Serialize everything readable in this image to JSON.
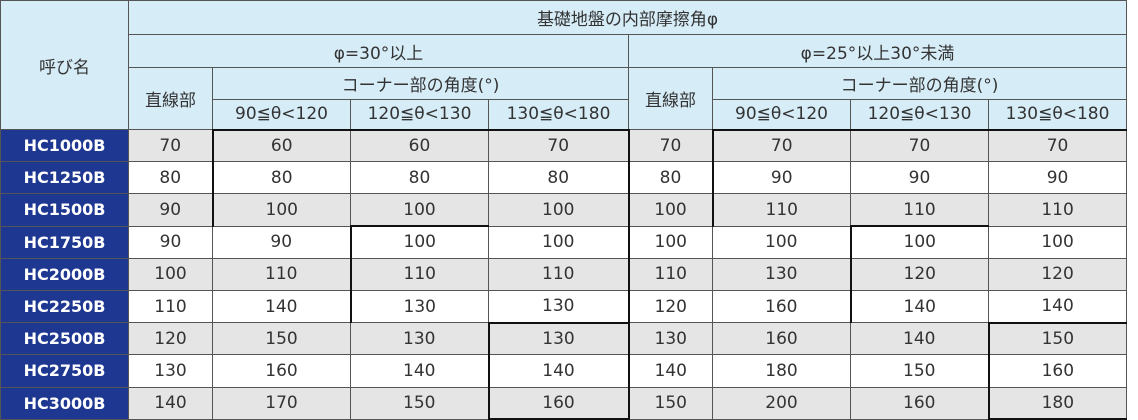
{
  "table": {
    "corner": "呼び名",
    "title": "基礎地盤の内部摩擦角φ",
    "groups": [
      {
        "label": "φ=30°以上",
        "straight": "直線部",
        "corner_angle": "コーナー部の角度(°)",
        "ranges": [
          "90≦θ<120",
          "120≦θ<130",
          "130≦θ<180"
        ]
      },
      {
        "label": "φ=25°以上30°未満",
        "straight": "直線部",
        "corner_angle": "コーナー部の角度(°)",
        "ranges": [
          "90≦θ<120",
          "120≦θ<130",
          "130≦θ<180"
        ]
      }
    ],
    "rows": [
      {
        "name": "HC1000B",
        "values": [
          "70",
          "60",
          "60",
          "70",
          "70",
          "70",
          "70",
          "70"
        ]
      },
      {
        "name": "HC1250B",
        "values": [
          "80",
          "80",
          "80",
          "80",
          "80",
          "90",
          "90",
          "90"
        ]
      },
      {
        "name": "HC1500B",
        "values": [
          "90",
          "100",
          "100",
          "100",
          "100",
          "110",
          "110",
          "110"
        ]
      },
      {
        "name": "HC1750B",
        "values": [
          "90",
          "90",
          "100",
          "100",
          "100",
          "100",
          "100",
          "100"
        ]
      },
      {
        "name": "HC2000B",
        "values": [
          "100",
          "110",
          "110",
          "110",
          "110",
          "130",
          "120",
          "120"
        ]
      },
      {
        "name": "HC2250B",
        "values": [
          "110",
          "140",
          "130",
          "130",
          "120",
          "160",
          "140",
          "140"
        ]
      },
      {
        "name": "HC2500B",
        "values": [
          "120",
          "150",
          "130",
          "130",
          "130",
          "160",
          "140",
          "150"
        ]
      },
      {
        "name": "HC2750B",
        "values": [
          "130",
          "160",
          "140",
          "140",
          "140",
          "180",
          "150",
          "160"
        ]
      },
      {
        "name": "HC3000B",
        "values": [
          "140",
          "170",
          "150",
          "160",
          "150",
          "200",
          "160",
          "180"
        ]
      }
    ]
  }
}
